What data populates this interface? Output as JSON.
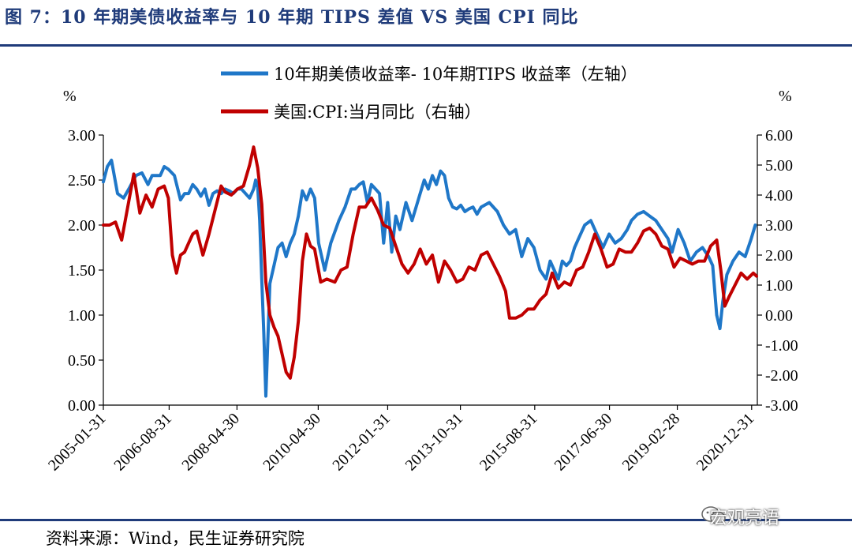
{
  "figure": {
    "title": "图 7：10 年期美债收益率与 10 年期 TIPS 差值  VS  美国 CPI 同比",
    "source": "资料来源：Wind，民生证券研究院",
    "watermark": "宏观亮语",
    "watermark_icon": "wechat-icon"
  },
  "colors": {
    "title": "#1f3b7a",
    "blue": "#1f77c8",
    "red": "#c00000"
  },
  "chart_data": {
    "type": "line",
    "left_unit": "%",
    "right_unit": "%",
    "ylim_left": [
      0,
      3
    ],
    "ylim_right": [
      -3,
      6
    ],
    "left_ticks": [
      "0.00",
      "0.50",
      "1.00",
      "1.50",
      "2.00",
      "2.50",
      "3.00"
    ],
    "left_tick_values": [
      0,
      0.5,
      1,
      1.5,
      2,
      2.5,
      3
    ],
    "right_ticks": [
      "-3.00",
      "-2.00",
      "-1.00",
      "0.00",
      "1.00",
      "2.00",
      "3.00",
      "4.00",
      "5.00",
      "6.00"
    ],
    "right_tick_values": [
      -3,
      -2,
      -1,
      0,
      1,
      2,
      3,
      4,
      5,
      6
    ],
    "x_range": [
      2005.0,
      2021.1
    ],
    "x_ticks": [
      "2005-01-31",
      "2006-08-31",
      "2008-04-30",
      "2010-04-30",
      "2012-01-31",
      "2013-10-31",
      "2015-08-31",
      "2017-06-30",
      "2019-02-28",
      "2020-12-31"
    ],
    "x_tick_values": [
      2005.0,
      2006.62,
      2008.29,
      2010.29,
      2012.0,
      2013.79,
      2015.62,
      2017.46,
      2019.13,
      2020.96
    ],
    "series": [
      {
        "name": "10年期美债收益率- 10年期TIPS 收益率（左轴）",
        "axis": "left",
        "x": [
          2005.0,
          2005.1,
          2005.2,
          2005.35,
          2005.5,
          2005.65,
          2005.8,
          2005.95,
          2006.1,
          2006.2,
          2006.3,
          2006.4,
          2006.5,
          2006.6,
          2006.75,
          2006.9,
          2007.0,
          2007.1,
          2007.2,
          2007.3,
          2007.4,
          2007.5,
          2007.6,
          2007.7,
          2007.8,
          2007.9,
          2008.0,
          2008.1,
          2008.2,
          2008.3,
          2008.4,
          2008.5,
          2008.6,
          2008.7,
          2008.75,
          2008.8,
          2008.85,
          2008.9,
          2008.95,
          2009.0,
          2009.1,
          2009.2,
          2009.3,
          2009.4,
          2009.5,
          2009.6,
          2009.7,
          2009.8,
          2009.9,
          2010.0,
          2010.1,
          2010.2,
          2010.3,
          2010.45,
          2010.6,
          2010.8,
          2010.95,
          2011.1,
          2011.2,
          2011.3,
          2011.4,
          2011.5,
          2011.6,
          2011.7,
          2011.8,
          2011.9,
          2012.0,
          2012.1,
          2012.2,
          2012.3,
          2012.45,
          2012.6,
          2012.8,
          2012.9,
          2013.0,
          2013.1,
          2013.2,
          2013.3,
          2013.4,
          2013.5,
          2013.6,
          2013.7,
          2013.8,
          2013.9,
          2014.0,
          2014.1,
          2014.2,
          2014.3,
          2014.5,
          2014.7,
          2014.85,
          2015.0,
          2015.15,
          2015.3,
          2015.45,
          2015.6,
          2015.75,
          2015.9,
          2016.0,
          2016.1,
          2016.2,
          2016.3,
          2016.4,
          2016.5,
          2016.6,
          2016.7,
          2016.85,
          2017.0,
          2017.15,
          2017.3,
          2017.45,
          2017.6,
          2017.75,
          2017.9,
          2018.0,
          2018.15,
          2018.3,
          2018.45,
          2018.6,
          2018.75,
          2018.9,
          2019.0,
          2019.15,
          2019.3,
          2019.45,
          2019.6,
          2019.75,
          2019.9,
          2020.0,
          2020.1,
          2020.18,
          2020.25,
          2020.35,
          2020.5,
          2020.65,
          2020.8,
          2020.95,
          2021.05
        ],
        "values": [
          2.48,
          2.65,
          2.72,
          2.35,
          2.3,
          2.42,
          2.55,
          2.58,
          2.45,
          2.55,
          2.55,
          2.55,
          2.65,
          2.62,
          2.55,
          2.28,
          2.35,
          2.35,
          2.45,
          2.4,
          2.32,
          2.4,
          2.22,
          2.35,
          2.38,
          2.35,
          2.4,
          2.38,
          2.35,
          2.4,
          2.4,
          2.35,
          2.3,
          2.4,
          2.5,
          2.42,
          2.05,
          1.4,
          0.8,
          0.1,
          1.35,
          1.55,
          1.75,
          1.8,
          1.65,
          1.8,
          1.9,
          2.1,
          2.38,
          2.28,
          2.4,
          2.3,
          1.8,
          1.5,
          1.8,
          2.05,
          2.2,
          2.4,
          2.4,
          2.45,
          2.48,
          2.25,
          2.45,
          2.4,
          2.35,
          1.8,
          2.25,
          1.7,
          2.1,
          1.95,
          2.25,
          2.05,
          2.35,
          2.5,
          2.4,
          2.55,
          2.45,
          2.6,
          2.55,
          2.3,
          2.2,
          2.18,
          2.22,
          2.15,
          2.18,
          2.2,
          2.12,
          2.2,
          2.25,
          2.15,
          2.0,
          1.9,
          1.95,
          1.65,
          1.85,
          1.75,
          1.5,
          1.4,
          1.6,
          1.5,
          1.4,
          1.6,
          1.55,
          1.6,
          1.75,
          1.85,
          2.0,
          2.05,
          1.9,
          1.75,
          1.9,
          1.8,
          1.85,
          1.95,
          2.05,
          2.12,
          2.15,
          2.1,
          2.05,
          1.95,
          1.85,
          1.7,
          1.95,
          1.8,
          1.6,
          1.7,
          1.75,
          1.65,
          1.55,
          1.0,
          0.85,
          1.15,
          1.45,
          1.6,
          1.7,
          1.65,
          1.85,
          2.0
        ]
      },
      {
        "name": "美国:CPI:当月同比（右轴）",
        "axis": "right",
        "x": [
          2005.0,
          2005.15,
          2005.3,
          2005.45,
          2005.6,
          2005.75,
          2005.9,
          2006.05,
          2006.2,
          2006.35,
          2006.5,
          2006.6,
          2006.7,
          2006.8,
          2006.9,
          2007.0,
          2007.1,
          2007.2,
          2007.3,
          2007.45,
          2007.6,
          2007.75,
          2007.9,
          2008.0,
          2008.15,
          2008.3,
          2008.45,
          2008.6,
          2008.7,
          2008.8,
          2008.9,
          2009.0,
          2009.1,
          2009.2,
          2009.3,
          2009.4,
          2009.5,
          2009.6,
          2009.7,
          2009.8,
          2009.9,
          2010.0,
          2010.1,
          2010.2,
          2010.35,
          2010.5,
          2010.7,
          2010.85,
          2011.0,
          2011.15,
          2011.3,
          2011.45,
          2011.6,
          2011.75,
          2011.9,
          2012.05,
          2012.2,
          2012.35,
          2012.5,
          2012.65,
          2012.8,
          2012.95,
          2013.1,
          2013.25,
          2013.4,
          2013.55,
          2013.7,
          2013.85,
          2014.0,
          2014.15,
          2014.3,
          2014.45,
          2014.6,
          2014.75,
          2014.9,
          2015.0,
          2015.15,
          2015.3,
          2015.45,
          2015.6,
          2015.75,
          2015.9,
          2016.05,
          2016.2,
          2016.35,
          2016.5,
          2016.65,
          2016.8,
          2016.95,
          2017.1,
          2017.25,
          2017.4,
          2017.55,
          2017.7,
          2017.85,
          2018.0,
          2018.15,
          2018.3,
          2018.45,
          2018.6,
          2018.75,
          2018.9,
          2019.05,
          2019.2,
          2019.35,
          2019.5,
          2019.65,
          2019.8,
          2019.95,
          2020.1,
          2020.2,
          2020.3,
          2020.4,
          2020.55,
          2020.7,
          2020.85,
          2021.0,
          2021.08
        ],
        "values": [
          3.0,
          3.0,
          3.1,
          2.5,
          3.6,
          4.7,
          3.4,
          4.0,
          3.6,
          4.2,
          4.3,
          3.9,
          2.0,
          1.4,
          2.0,
          2.1,
          2.4,
          2.7,
          2.8,
          2.0,
          2.7,
          3.5,
          4.3,
          4.1,
          4.0,
          4.2,
          4.3,
          5.0,
          5.6,
          4.9,
          3.7,
          1.1,
          0.0,
          -0.4,
          -0.7,
          -1.3,
          -1.9,
          -2.1,
          -1.4,
          -0.2,
          1.8,
          2.7,
          2.3,
          2.2,
          1.1,
          1.2,
          1.1,
          1.5,
          1.6,
          2.7,
          3.6,
          3.6,
          3.9,
          3.5,
          3.0,
          2.9,
          2.3,
          1.7,
          1.4,
          1.7,
          2.2,
          1.7,
          2.0,
          1.1,
          1.8,
          1.5,
          1.1,
          1.2,
          1.6,
          1.5,
          2.0,
          2.1,
          1.7,
          1.3,
          0.8,
          -0.1,
          -0.1,
          0.0,
          0.2,
          0.2,
          0.5,
          0.7,
          1.4,
          0.9,
          1.1,
          1.0,
          1.5,
          1.6,
          2.1,
          2.7,
          2.2,
          1.6,
          1.7,
          2.2,
          2.1,
          2.1,
          2.4,
          2.8,
          2.9,
          2.7,
          2.3,
          2.2,
          1.6,
          1.9,
          1.8,
          1.7,
          1.8,
          1.8,
          2.3,
          2.5,
          1.5,
          0.3,
          0.6,
          1.0,
          1.4,
          1.2,
          1.4,
          1.3
        ]
      }
    ]
  }
}
